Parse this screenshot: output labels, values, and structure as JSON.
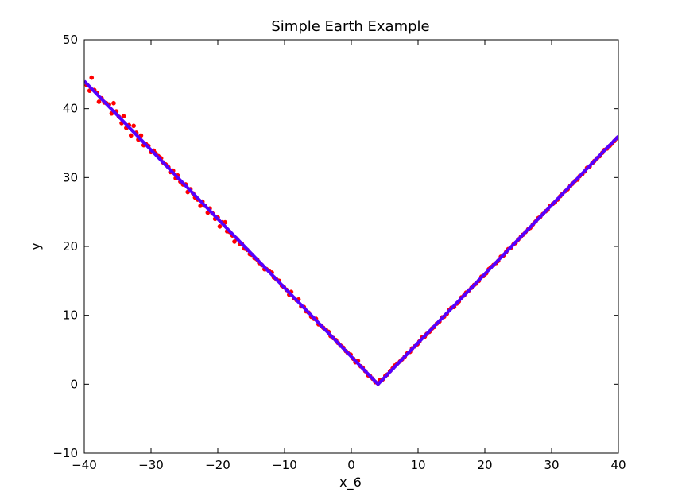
{
  "chart_data": {
    "type": "scatter",
    "title": "Simple Earth Example",
    "xlabel": "x_6",
    "ylabel": "y",
    "xlim": [
      -40,
      40
    ],
    "ylim": [
      -10,
      50
    ],
    "xticks": [
      -40,
      -30,
      -20,
      -10,
      0,
      10,
      20,
      30,
      40
    ],
    "yticks": [
      -10,
      0,
      10,
      20,
      30,
      40,
      50
    ],
    "xtick_labels": [
      "−40",
      "−30",
      "−20",
      "−10",
      "0",
      "10",
      "20",
      "30",
      "40"
    ],
    "ytick_labels": [
      "−10",
      "0",
      "10",
      "20",
      "30",
      "40",
      "50"
    ],
    "grid": false,
    "colors": {
      "scatter": "#ff0000",
      "fit_line": "#5500ff",
      "axes": "#000000",
      "background": "#ffffff"
    },
    "series": [
      {
        "kind": "scatter",
        "x": [
          -39.6,
          -39.2,
          -38.9,
          -38.5,
          -38.1,
          -37.8,
          -37.4,
          -37.0,
          -36.7,
          -36.3,
          -35.9,
          -35.6,
          -35.2,
          -34.8,
          -34.4,
          -34.1,
          -33.7,
          -33.3,
          -33.0,
          -32.6,
          -32.2,
          -31.9,
          -31.5,
          -31.1,
          -30.8,
          -30.4,
          -30.0,
          -29.6,
          -29.3,
          -28.9,
          -28.5,
          -28.2,
          -27.8,
          -27.4,
          -27.1,
          -26.7,
          -26.3,
          -26.0,
          -25.6,
          -25.2,
          -24.8,
          -24.5,
          -24.1,
          -23.7,
          -23.4,
          -23.0,
          -22.6,
          -22.3,
          -21.9,
          -21.5,
          -21.2,
          -20.8,
          -20.4,
          -20.0,
          -19.7,
          -19.3,
          -18.9,
          -18.6,
          -18.2,
          -17.8,
          -17.5,
          -17.1,
          -16.7,
          -16.4,
          -16.0,
          -15.6,
          -15.2,
          -14.9,
          -14.5,
          -14.1,
          -13.8,
          -13.4,
          -13.0,
          -12.7,
          -12.3,
          -11.9,
          -11.6,
          -11.2,
          -10.8,
          -10.4,
          -10.1,
          -9.7,
          -9.3,
          -9.0,
          -8.6,
          -8.2,
          -7.9,
          -7.5,
          -7.1,
          -6.8,
          -6.4,
          -6.0,
          -5.6,
          -5.3,
          -4.9,
          -4.5,
          -4.2,
          -3.8,
          -3.4,
          -3.1,
          -2.7,
          -2.3,
          -2.0,
          -1.6,
          -1.2,
          -0.8,
          -0.5,
          -0.1,
          0.3,
          0.6,
          1.0,
          1.4,
          1.7,
          2.1,
          2.5,
          2.8,
          3.2,
          3.6,
          4.0,
          4.3,
          4.7,
          5.1,
          5.4,
          5.8,
          6.2,
          6.5,
          6.9,
          7.3,
          7.6,
          8.0,
          8.4,
          8.8,
          9.1,
          9.5,
          9.9,
          10.2,
          10.6,
          11.0,
          11.3,
          11.7,
          12.1,
          12.4,
          12.8,
          13.2,
          13.6,
          13.9,
          14.3,
          14.7,
          15.0,
          15.4,
          15.8,
          16.1,
          16.5,
          16.9,
          17.2,
          17.6,
          18.0,
          18.4,
          18.7,
          19.1,
          19.5,
          19.8,
          20.2,
          20.6,
          20.9,
          21.3,
          21.7,
          22.0,
          22.4,
          22.8,
          23.2,
          23.5,
          23.9,
          24.3,
          24.6,
          25.0,
          25.4,
          25.7,
          26.1,
          26.5,
          26.8,
          27.2,
          27.6,
          28.0,
          28.3,
          28.7,
          29.1,
          29.4,
          29.8,
          30.2,
          30.5,
          30.9,
          31.3,
          31.6,
          32.0,
          32.4,
          32.8,
          33.1,
          33.5,
          33.9,
          34.2,
          34.6,
          35.0,
          35.3,
          35.7,
          36.1,
          36.4,
          36.8,
          37.2,
          37.6,
          37.9,
          38.3,
          38.7,
          39.0,
          39.4,
          39.8
        ],
        "y": [
          43.4,
          42.6,
          44.5,
          42.7,
          42.3,
          41.0,
          41.5,
          40.9,
          40.8,
          40.6,
          39.3,
          40.8,
          39.6,
          38.8,
          37.9,
          38.9,
          37.2,
          37.6,
          36.1,
          37.5,
          36.5,
          35.5,
          36.1,
          34.7,
          34.9,
          34.6,
          33.7,
          33.9,
          33.5,
          33.1,
          32.8,
          32.2,
          31.9,
          31.5,
          30.8,
          31.0,
          29.9,
          30.3,
          29.4,
          29.0,
          29.0,
          27.9,
          28.3,
          27.7,
          27.1,
          26.8,
          25.9,
          26.5,
          25.9,
          24.9,
          25.5,
          24.8,
          24.0,
          24.2,
          22.9,
          23.5,
          23.5,
          22.2,
          22.1,
          21.6,
          20.7,
          21.1,
          20.4,
          20.4,
          19.7,
          19.5,
          18.9,
          18.8,
          18.3,
          18.1,
          17.6,
          17.3,
          16.7,
          16.7,
          16.4,
          16.2,
          15.5,
          15.2,
          15.0,
          14.3,
          14.1,
          13.7,
          13.0,
          13.4,
          12.5,
          12.2,
          12.3,
          11.3,
          11.2,
          10.6,
          10.4,
          9.8,
          9.5,
          9.5,
          8.7,
          8.5,
          8.2,
          7.9,
          7.6,
          7.0,
          6.7,
          6.4,
          6.0,
          5.6,
          5.3,
          4.8,
          4.5,
          4.3,
          3.7,
          3.2,
          3.4,
          2.6,
          2.4,
          1.9,
          1.3,
          1.2,
          0.8,
          0.3,
          0.1,
          0.6,
          0.7,
          1.2,
          1.4,
          1.9,
          2.3,
          2.7,
          3.0,
          3.3,
          3.6,
          4.0,
          4.5,
          4.7,
          5.2,
          5.5,
          5.8,
          6.2,
          6.8,
          6.9,
          7.3,
          7.6,
          8.1,
          8.3,
          8.8,
          9.1,
          9.7,
          9.8,
          10.2,
          10.8,
          11.1,
          11.2,
          11.7,
          12.0,
          12.6,
          12.9,
          13.3,
          13.6,
          14.0,
          14.4,
          14.6,
          15.0,
          15.6,
          15.7,
          16.1,
          16.7,
          17.0,
          17.3,
          17.6,
          17.9,
          18.5,
          18.7,
          19.2,
          19.6,
          19.8,
          20.3,
          20.5,
          21.0,
          21.4,
          21.7,
          22.1,
          22.5,
          22.7,
          23.2,
          23.6,
          24.1,
          24.3,
          24.7,
          25.1,
          25.3,
          25.9,
          26.2,
          26.4,
          26.8,
          27.3,
          27.6,
          28.0,
          28.3,
          28.8,
          29.1,
          29.5,
          29.7,
          30.2,
          30.5,
          30.9,
          31.4,
          31.6,
          32.1,
          32.4,
          32.8,
          33.1,
          33.6,
          34.0,
          34.2,
          34.6,
          34.9,
          35.3,
          35.7
        ]
      },
      {
        "kind": "line",
        "x": [
          -40,
          4,
          40
        ],
        "y": [
          44,
          0,
          36
        ]
      }
    ]
  }
}
